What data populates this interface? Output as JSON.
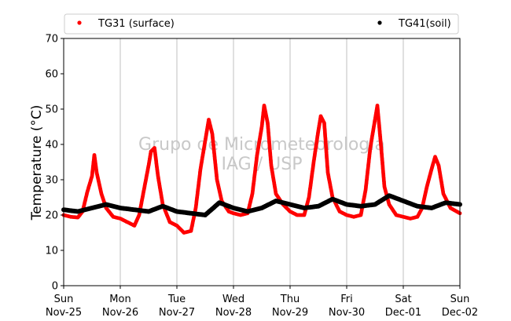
{
  "chart_data": {
    "type": "scatter",
    "title": "",
    "xlabel": "",
    "ylabel": "Temperature (°C)",
    "ylim": [
      0,
      70
    ],
    "yticks": [
      0,
      10,
      20,
      30,
      40,
      50,
      60,
      70
    ],
    "xlim": [
      "2018-11-25T00:00",
      "2018-12-02T00:00"
    ],
    "xticks": [
      {
        "day": "Sun",
        "date": "Nov-25"
      },
      {
        "day": "Mon",
        "date": "Nov-26"
      },
      {
        "day": "Tue",
        "date": "Nov-27"
      },
      {
        "day": "Wed",
        "date": "Nov-28"
      },
      {
        "day": "Thu",
        "date": "Nov-29"
      },
      {
        "day": "Fri",
        "date": "Nov-30"
      },
      {
        "day": "Sat",
        "date": "Dec-01"
      },
      {
        "day": "Sun",
        "date": "Dec-02"
      }
    ],
    "grid": "vertical",
    "legend_position": "top",
    "watermark": [
      "Grupo de Micrometeorologia",
      "IAG / USP"
    ],
    "series": [
      {
        "name": "TG31 (surface)",
        "color": "#ff0000",
        "marker": "dot",
        "points": [
          [
            "2018-11-25T00:00",
            20.0
          ],
          [
            "2018-11-25T03:00",
            19.5
          ],
          [
            "2018-11-25T06:00",
            19.3
          ],
          [
            "2018-11-25T08:00",
            21.0
          ],
          [
            "2018-11-25T10:00",
            26.5
          ],
          [
            "2018-11-25T12:00",
            31.0
          ],
          [
            "2018-11-25T13:00",
            37.0
          ],
          [
            "2018-11-25T14:00",
            32.0
          ],
          [
            "2018-11-25T16:00",
            26.0
          ],
          [
            "2018-11-25T18:00",
            22.0
          ],
          [
            "2018-11-25T21:00",
            19.5
          ],
          [
            "2018-11-26T00:00",
            19.0
          ],
          [
            "2018-11-26T03:00",
            18.0
          ],
          [
            "2018-11-26T06:00",
            17.0
          ],
          [
            "2018-11-26T08:00",
            20.0
          ],
          [
            "2018-11-26T10:00",
            27.0
          ],
          [
            "2018-11-26T12:00",
            34.0
          ],
          [
            "2018-11-26T13:00",
            38.0
          ],
          [
            "2018-11-26T14:30",
            39.0
          ],
          [
            "2018-11-26T16:00",
            31.0
          ],
          [
            "2018-11-26T18:00",
            23.0
          ],
          [
            "2018-11-26T21:00",
            18.0
          ],
          [
            "2018-11-27T00:00",
            17.0
          ],
          [
            "2018-11-27T03:00",
            15.0
          ],
          [
            "2018-11-27T06:00",
            15.5
          ],
          [
            "2018-11-27T08:00",
            22.0
          ],
          [
            "2018-11-27T10:00",
            33.0
          ],
          [
            "2018-11-27T12:00",
            41.0
          ],
          [
            "2018-11-27T13:30",
            47.0
          ],
          [
            "2018-11-27T15:00",
            43.0
          ],
          [
            "2018-11-27T17:00",
            30.0
          ],
          [
            "2018-11-27T19:00",
            24.0
          ],
          [
            "2018-11-27T22:00",
            21.0
          ],
          [
            "2018-11-28T00:00",
            20.5
          ],
          [
            "2018-11-28T03:00",
            20.0
          ],
          [
            "2018-11-28T06:00",
            20.5
          ],
          [
            "2018-11-28T08:00",
            26.0
          ],
          [
            "2018-11-28T10:00",
            37.0
          ],
          [
            "2018-11-28T12:00",
            45.0
          ],
          [
            "2018-11-28T13:00",
            51.0
          ],
          [
            "2018-11-28T14:30",
            46.0
          ],
          [
            "2018-11-28T16:00",
            34.0
          ],
          [
            "2018-11-28T18:00",
            26.0
          ],
          [
            "2018-11-28T21:00",
            23.0
          ],
          [
            "2018-11-29T00:00",
            21.0
          ],
          [
            "2018-11-29T03:00",
            20.0
          ],
          [
            "2018-11-29T06:00",
            20.0
          ],
          [
            "2018-11-29T08:00",
            25.0
          ],
          [
            "2018-11-29T10:00",
            35.0
          ],
          [
            "2018-11-29T12:00",
            44.0
          ],
          [
            "2018-11-29T13:00",
            48.0
          ],
          [
            "2018-11-29T14:30",
            46.0
          ],
          [
            "2018-11-29T16:00",
            32.0
          ],
          [
            "2018-11-29T18:00",
            25.0
          ],
          [
            "2018-11-29T21:00",
            21.0
          ],
          [
            "2018-11-30T00:00",
            20.0
          ],
          [
            "2018-11-30T03:00",
            19.5
          ],
          [
            "2018-11-30T06:00",
            20.0
          ],
          [
            "2018-11-30T08:00",
            27.0
          ],
          [
            "2018-11-30T10:00",
            39.0
          ],
          [
            "2018-11-30T12:00",
            47.0
          ],
          [
            "2018-11-30T13:00",
            51.0
          ],
          [
            "2018-11-30T14:30",
            40.0
          ],
          [
            "2018-11-30T16:00",
            28.0
          ],
          [
            "2018-11-30T18:00",
            23.0
          ],
          [
            "2018-11-30T21:00",
            20.0
          ],
          [
            "2018-12-01T00:00",
            19.5
          ],
          [
            "2018-12-01T03:00",
            19.0
          ],
          [
            "2018-12-01T06:00",
            19.5
          ],
          [
            "2018-12-01T08:00",
            22.0
          ],
          [
            "2018-12-01T10:00",
            28.0
          ],
          [
            "2018-12-01T12:00",
            33.0
          ],
          [
            "2018-12-01T13:30",
            36.5
          ],
          [
            "2018-12-01T15:00",
            34.0
          ],
          [
            "2018-12-01T17:00",
            26.0
          ],
          [
            "2018-12-01T20:00",
            22.0
          ],
          [
            "2018-12-02T00:00",
            20.5
          ]
        ]
      },
      {
        "name": "TG41(soil)",
        "color": "#000000",
        "marker": "dot",
        "points": [
          [
            "2018-11-25T00:00",
            21.5
          ],
          [
            "2018-11-25T06:00",
            21.0
          ],
          [
            "2018-11-25T12:00",
            22.0
          ],
          [
            "2018-11-25T18:00",
            23.0
          ],
          [
            "2018-11-26T00:00",
            22.0
          ],
          [
            "2018-11-26T06:00",
            21.5
          ],
          [
            "2018-11-26T12:00",
            21.0
          ],
          [
            "2018-11-26T18:00",
            22.5
          ],
          [
            "2018-11-27T00:00",
            21.0
          ],
          [
            "2018-11-27T06:00",
            20.5
          ],
          [
            "2018-11-27T12:00",
            20.0
          ],
          [
            "2018-11-27T18:00",
            23.5
          ],
          [
            "2018-11-28T00:00",
            22.0
          ],
          [
            "2018-11-28T06:00",
            21.0
          ],
          [
            "2018-11-28T12:00",
            22.0
          ],
          [
            "2018-11-28T18:00",
            24.0
          ],
          [
            "2018-11-29T00:00",
            23.0
          ],
          [
            "2018-11-29T06:00",
            22.0
          ],
          [
            "2018-11-29T12:00",
            22.5
          ],
          [
            "2018-11-29T18:00",
            24.5
          ],
          [
            "2018-11-30T00:00",
            23.0
          ],
          [
            "2018-11-30T06:00",
            22.5
          ],
          [
            "2018-11-30T12:00",
            23.0
          ],
          [
            "2018-11-30T18:00",
            25.5
          ],
          [
            "2018-12-01T00:00",
            24.0
          ],
          [
            "2018-12-01T06:00",
            22.5
          ],
          [
            "2018-12-01T12:00",
            22.0
          ],
          [
            "2018-12-01T18:00",
            23.5
          ],
          [
            "2018-12-02T00:00",
            23.0
          ]
        ]
      }
    ]
  }
}
